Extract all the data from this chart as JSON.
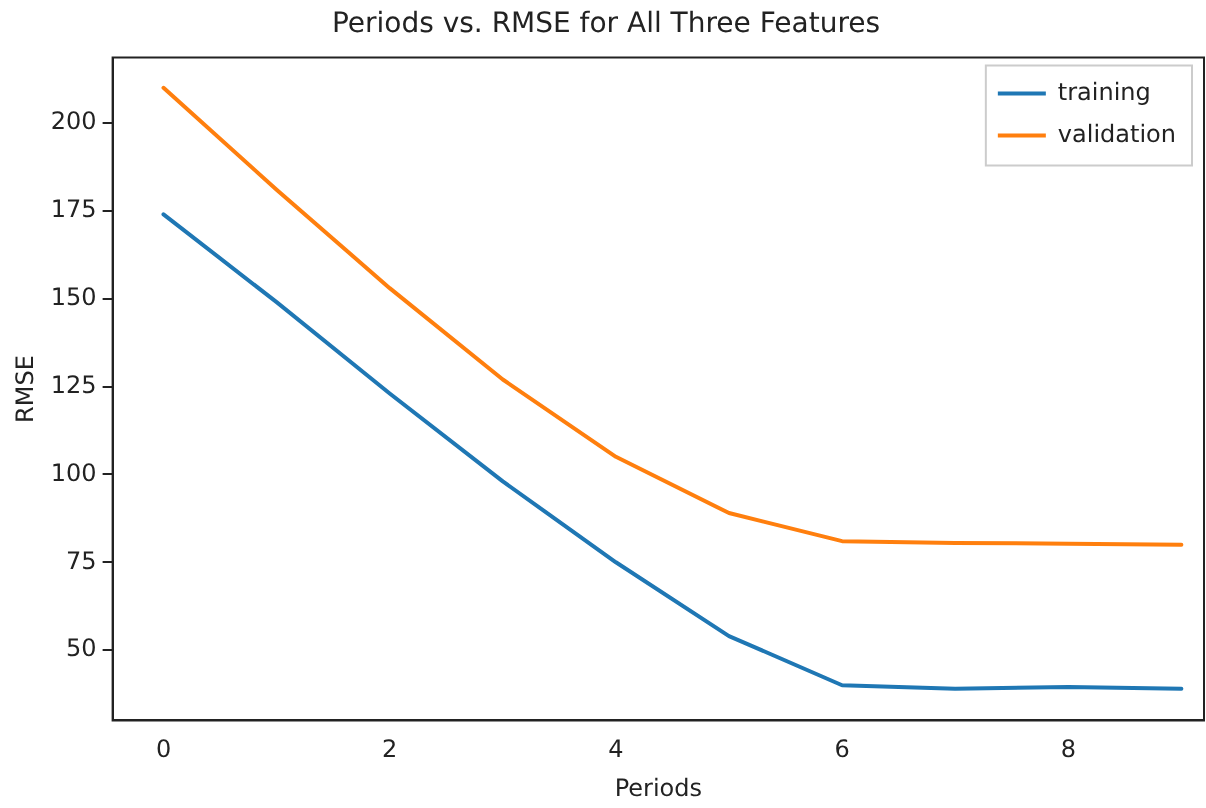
{
  "chart_data": {
    "type": "line",
    "title": "Periods vs. RMSE for All Three Features",
    "xlabel": "Periods",
    "ylabel": "RMSE",
    "x": [
      0,
      1,
      2,
      3,
      4,
      5,
      6,
      7,
      8,
      9
    ],
    "series": [
      {
        "name": "training",
        "color": "#1f77b4",
        "values": [
          174,
          149,
          123,
          98,
          75,
          54,
          40,
          39,
          39.5,
          39
        ]
      },
      {
        "name": "validation",
        "color": "#ff7f0e",
        "values": [
          210,
          181,
          153,
          127,
          105,
          89,
          81,
          80.5,
          80.3,
          80
        ]
      }
    ],
    "xlim": [
      -0.45,
      9.2
    ],
    "xticks": [
      0,
      2,
      4,
      6,
      8
    ],
    "ylim": [
      30,
      218.6
    ],
    "yticks": [
      50,
      75,
      100,
      125,
      150,
      175,
      200
    ],
    "grid": false,
    "legend": "top right",
    "marker": "none",
    "line_style": "solid"
  }
}
